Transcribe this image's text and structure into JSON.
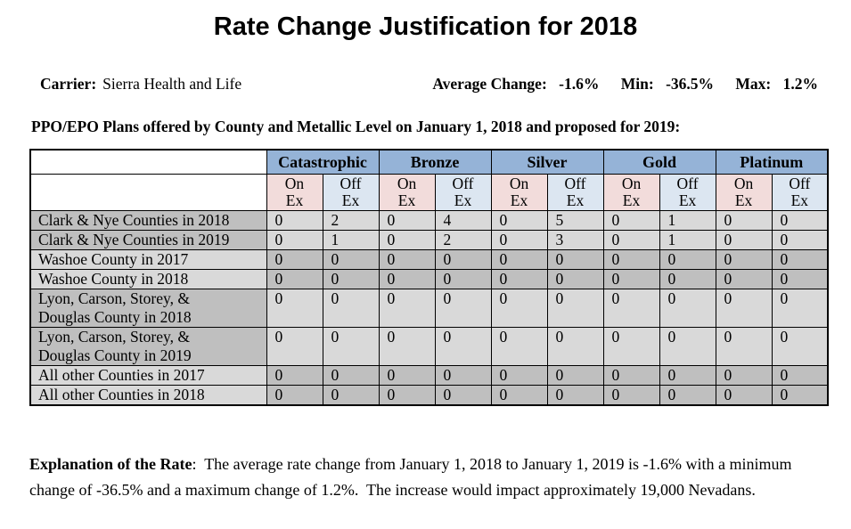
{
  "title": "Rate Change Justification for 2018",
  "carrier": {
    "label": "Carrier:",
    "value": "Sierra Health and Life"
  },
  "stats": {
    "average_label": "Average Change:",
    "average_value": "-1.6%",
    "min_label": "Min:",
    "min_value": "-36.5%",
    "max_label": "Max:",
    "max_value": "1.2%"
  },
  "table_heading": "PPO/EPO Plans offered by County and Metallic Level on January 1, 2018 and proposed for 2019:",
  "table": {
    "metal_levels": [
      "Catastrophic",
      "Bronze",
      "Silver",
      "Gold",
      "Platinum"
    ],
    "sub_headers": [
      [
        "On",
        "Ex"
      ],
      [
        "Off",
        "Ex"
      ]
    ],
    "rows": [
      {
        "label": "Clark & Nye Counties in 2018",
        "label_shade": "dark",
        "values": [
          0,
          2,
          0,
          4,
          0,
          5,
          0,
          1,
          0,
          0
        ]
      },
      {
        "label": "Clark & Nye Counties in 2019",
        "label_shade": "dark",
        "values": [
          0,
          1,
          0,
          2,
          0,
          3,
          0,
          1,
          0,
          0
        ]
      },
      {
        "label": "Washoe County in 2017",
        "label_shade": "light",
        "values": [
          0,
          0,
          0,
          0,
          0,
          0,
          0,
          0,
          0,
          0
        ]
      },
      {
        "label": "Washoe County in 2018",
        "label_shade": "light",
        "values": [
          0,
          0,
          0,
          0,
          0,
          0,
          0,
          0,
          0,
          0
        ]
      },
      {
        "label": "Lyon, Carson, Storey, &\nDouglas County in 2018",
        "label_shade": "dark",
        "values": [
          0,
          0,
          0,
          0,
          0,
          0,
          0,
          0,
          0,
          0
        ]
      },
      {
        "label": "Lyon, Carson, Storey, &\nDouglas County in 2019",
        "label_shade": "dark",
        "values": [
          0,
          0,
          0,
          0,
          0,
          0,
          0,
          0,
          0,
          0
        ]
      },
      {
        "label": "All other Counties in 2017",
        "label_shade": "light",
        "values": [
          0,
          0,
          0,
          0,
          0,
          0,
          0,
          0,
          0,
          0
        ]
      },
      {
        "label": "All other Counties in 2018",
        "label_shade": "light",
        "values": [
          0,
          0,
          0,
          0,
          0,
          0,
          0,
          0,
          0,
          0
        ]
      }
    ]
  },
  "explanation": {
    "label": "Explanation of the Rate",
    "text": ":  The average rate change from January 1, 2018 to January 1, 2019 is -1.6% with a minimum change of -36.5% and a maximum change of 1.2%.  The increase would impact approximately 19,000 Nevadans."
  },
  "colors": {
    "header_blue": "#95b3d7",
    "on_ex_pink": "#f2dcdb",
    "off_ex_blue": "#dce6f1",
    "dark_gray": "#bfbfbf",
    "light_gray": "#d9d9d9"
  }
}
